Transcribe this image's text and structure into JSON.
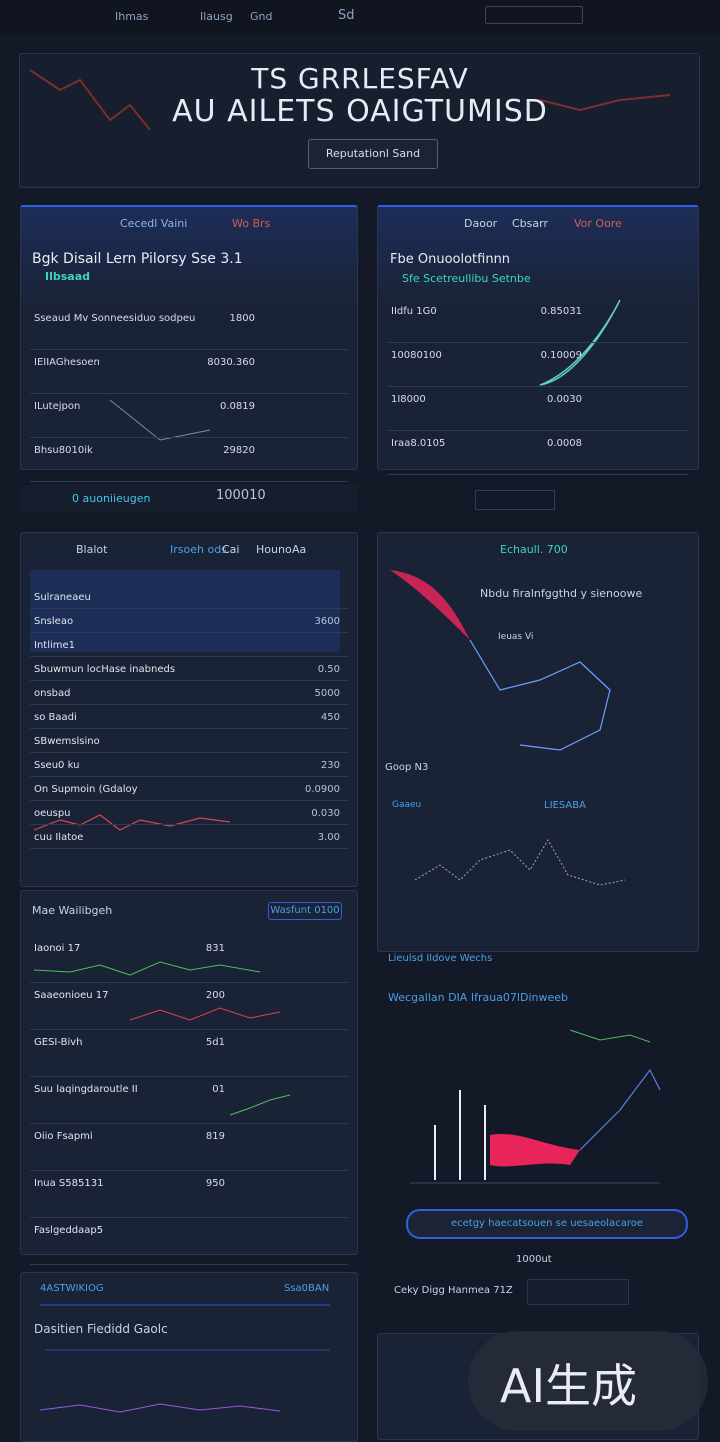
{
  "topbar": {
    "items": [
      "Ihmas",
      "Ilausg",
      "Gnd",
      "Sd"
    ]
  },
  "hero": {
    "title_line1": "TS GRRLESFAV",
    "title_line2": "AU AILETS OAIGTUMISD",
    "button": "Reputationl Sand"
  },
  "panel_a": {
    "tabs": [
      "Cecedl Vaini",
      "Wo Brs"
    ],
    "heading": "Bgk Disail  Lern Pilorsy Sse 3.1",
    "subheading": "Ilbsaad",
    "rows": [
      [
        "Sseaud Mv Sonneesiduo sodpeu",
        "1800"
      ],
      [
        "IEIIAGhesoen",
        "8030.360"
      ],
      [
        "ILutejpon",
        "0.0819"
      ],
      [
        "Bhsu8010ik",
        "29820"
      ]
    ]
  },
  "strip_a": {
    "label": "0 auoniieugen",
    "value": "100010"
  },
  "panel_b": {
    "tabs": [
      "Daoor",
      "Cbsarr",
      "Vor Oore"
    ],
    "heading": "Fbe Onuoolotfinnn",
    "subheading": "Sfe Scetreullibu Setnbe",
    "rows": [
      [
        "IIdfu 1G0",
        "0.85031"
      ],
      [
        "10080100",
        "0.10009"
      ],
      [
        "1I8000",
        "0.0030"
      ],
      [
        "Iraa8.0105",
        "0.0008"
      ]
    ]
  },
  "panel_c": {
    "tabs": [
      "Blalot",
      "Irsoeh ods",
      "Cai",
      "Houno",
      "Aa"
    ],
    "rows": [
      [
        "Sulraneaeu",
        ""
      ],
      [
        "Snsleao",
        "3600"
      ],
      [
        "Intlime1",
        ""
      ],
      [
        "Sbuwmun locHase inabneds",
        "0.50"
      ],
      [
        "onsbad",
        "5000"
      ],
      [
        "so Baadi",
        "450"
      ],
      [
        "SBwemslsino",
        ""
      ],
      [
        "Sseu0 ku",
        "230"
      ],
      [
        "On Supmoin (Gdaloy",
        "0.0900"
      ],
      [
        "oeuspu",
        "0.030"
      ],
      [
        "cuu Ilatoe",
        "3.00"
      ]
    ]
  },
  "panel_d": {
    "title": "Mae Wailibgeh",
    "badge": "Wasfunt 0100",
    "rows": [
      [
        "Iaonoi 17",
        "831"
      ],
      [
        "Saaeonioeu 17",
        "200"
      ],
      [
        "GESI-Bivh",
        "5d1"
      ],
      [
        "Suu laqingdaroutle II",
        "01"
      ],
      [
        "Oiio Fsapmi",
        "819"
      ],
      [
        "Inua S585131",
        "950"
      ],
      [
        "Faslgeddaap5",
        ""
      ]
    ]
  },
  "panel_e": {
    "title": "Echaull. 700",
    "subtitle": "Nbdu firalnfggthd y sienoowe",
    "labels": [
      "Ieuas Vi",
      "Goop N3",
      "LIESABA",
      "Gaaeu"
    ]
  },
  "panel_f": {
    "title": "Wecgallan DIA Ifraua07lDinweeb",
    "caption": "Lieulsd  Ildove Wechs",
    "button": "ecetgy haecatsouen se uesaeolacaroe",
    "value": "1000ut",
    "footer": "Ceky Digg Hanmea 71Z"
  },
  "panel_g": {
    "badge": "4ASTWIKIOG",
    "link": "Ssa0BAN",
    "title": "Dasitien Fiedidd Gaolc"
  },
  "watermark": "AI生成"
}
